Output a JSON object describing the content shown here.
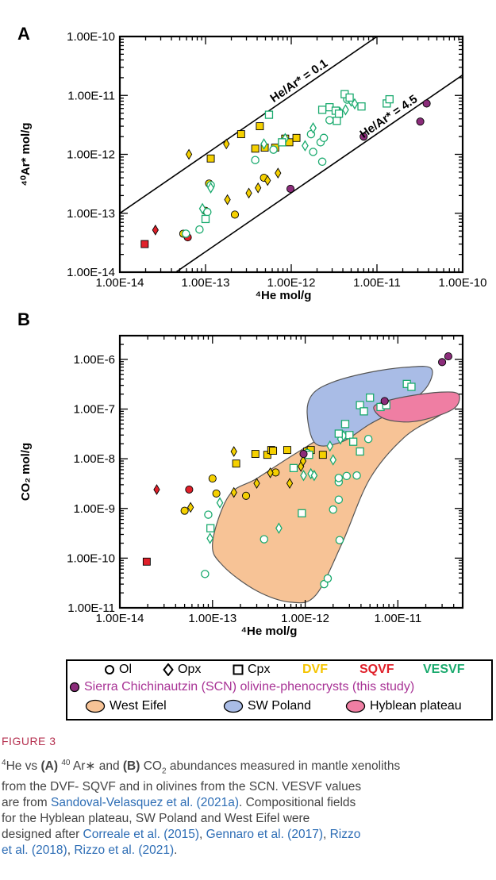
{
  "chart_data": [
    {
      "panel": "A",
      "type": "scatter",
      "xscale": "log",
      "yscale": "log",
      "xlim": [
        1e-14,
        1e-10
      ],
      "ylim": [
        1e-14,
        1e-10
      ],
      "xlabel": "⁴He mol/g",
      "ylabel": "⁴⁰Ar* mol/g",
      "xticks": [
        "1.00E-14",
        "1.00E-13",
        "1.00E-12",
        "1.00E-11",
        "1.00E-10"
      ],
      "yticks": [
        "1.00E-14",
        "1.00E-13",
        "1.00E-12",
        "1.00E-11",
        "1.00E-10"
      ],
      "ratio_lines": [
        {
          "label": "He/Ar* = 0.1",
          "ratio": 0.1
        },
        {
          "label": "He/Ar* = 4.5",
          "ratio": 4.5
        }
      ],
      "series": [
        {
          "name": "DVF Ol",
          "marker": "circle",
          "color": "#f5d000",
          "filled": true,
          "points": [
            [
              5.5e-14,
              4.5e-14
            ],
            [
              1.1e-13,
              3.2e-13
            ],
            [
              2.2e-13,
              9.5e-14
            ],
            [
              1e-13,
              1.1e-13
            ],
            [
              4.8e-13,
              4e-13
            ]
          ]
        },
        {
          "name": "DVF Opx",
          "marker": "diamond",
          "color": "#f5d000",
          "filled": true,
          "points": [
            [
              6.4e-14,
              1e-12
            ],
            [
              1.75e-13,
              1.5e-12
            ],
            [
              1.8e-13,
              1.7e-13
            ],
            [
              3.2e-13,
              2.2e-13
            ],
            [
              4.1e-13,
              2.7e-13
            ],
            [
              5.3e-13,
              3.6e-13
            ],
            [
              7e-13,
              4.8e-13
            ]
          ]
        },
        {
          "name": "DVF Cpx",
          "marker": "square",
          "color": "#f5d000",
          "filled": true,
          "points": [
            [
              1.15e-13,
              8.5e-13
            ],
            [
              2.6e-13,
              2.2e-12
            ],
            [
              3.8e-13,
              1.25e-12
            ],
            [
              4.3e-13,
              3e-12
            ],
            [
              4.9e-13,
              1.3e-12
            ],
            [
              6.5e-13,
              1.3e-12
            ],
            [
              8.5e-13,
              1.85e-12
            ],
            [
              9.5e-13,
              1.6e-12
            ],
            [
              1.15e-12,
              1.9e-12
            ]
          ]
        },
        {
          "name": "SQVF Opx",
          "marker": "diamond",
          "color": "#e0202a",
          "filled": true,
          "points": [
            [
              2.6e-14,
              5.2e-14
            ]
          ]
        },
        {
          "name": "SQVF Cpx",
          "marker": "square",
          "color": "#e0202a",
          "filled": true,
          "points": [
            [
              1.95e-14,
              3e-14
            ]
          ]
        },
        {
          "name": "SQVF Ol",
          "marker": "circle",
          "color": "#e0202a",
          "filled": true,
          "points": [
            [
              6.2e-14,
              3.9e-14
            ]
          ]
        },
        {
          "name": "VESVF Ol",
          "marker": "circle",
          "color": "#1aaa6e",
          "filled": false,
          "points": [
            [
              5.9e-14,
              4.5e-14
            ],
            [
              8.5e-14,
              5.3e-14
            ],
            [
              1.05e-13,
              1.05e-13
            ],
            [
              1.15e-13,
              3e-13
            ],
            [
              3.8e-13,
              8e-13
            ],
            [
              6.2e-13,
              1.2e-12
            ],
            [
              1.8e-12,
              1.1e-12
            ],
            [
              2.2e-12,
              1.6e-12
            ],
            [
              2.3e-12,
              7.5e-13
            ],
            [
              2.4e-12,
              1.9e-12
            ],
            [
              2.8e-12,
              3.8e-12
            ],
            [
              3.5e-12,
              5.5e-12
            ],
            [
              4.5e-12,
              8.5e-12
            ],
            [
              1.7e-12,
              2.2e-12
            ]
          ]
        },
        {
          "name": "VESVF Opx",
          "marker": "diamond",
          "color": "#1aaa6e",
          "filled": false,
          "points": [
            [
              9.2e-14,
              1.2e-13
            ],
            [
              1.15e-13,
              2.7e-13
            ],
            [
              4.8e-13,
              1.5e-12
            ],
            [
              8.5e-13,
              1.85e-12
            ],
            [
              1.45e-12,
              1.4e-12
            ],
            [
              1.8e-12,
              2.8e-12
            ],
            [
              4.3e-12,
              5.7e-12
            ],
            [
              5e-12,
              8e-12
            ],
            [
              3.7e-12,
              4.8e-12
            ],
            [
              5.5e-12,
              7.2e-12
            ]
          ]
        },
        {
          "name": "VESVF Cpx",
          "marker": "square",
          "color": "#1aaa6e",
          "filled": false,
          "points": [
            [
              1e-13,
              8e-14
            ],
            [
              5.5e-13,
              4.7e-12
            ],
            [
              7.8e-13,
              1.6e-12
            ],
            [
              2.3e-12,
              5.7e-12
            ],
            [
              2.8e-12,
              6.3e-12
            ],
            [
              3.3e-12,
              5.5e-12
            ],
            [
              3.6e-12,
              4.9e-12
            ],
            [
              4.2e-12,
              1.05e-11
            ],
            [
              4.8e-12,
              9.2e-12
            ],
            [
              6.6e-12,
              6.5e-12
            ],
            [
              1.3e-11,
              7.3e-12
            ],
            [
              1.4e-11,
              8.6e-12
            ],
            [
              3.4e-12,
              3.7e-12
            ]
          ]
        },
        {
          "name": "Sierra Chichinautzin (SCN)",
          "marker": "circle",
          "color": "#8b2c7a",
          "filled": true,
          "points": [
            [
              9.8e-13,
              2.6e-13
            ],
            [
              7e-12,
              2e-12
            ],
            [
              3.2e-11,
              3.6e-12
            ],
            [
              3.8e-11,
              7.3e-12
            ]
          ]
        }
      ]
    },
    {
      "panel": "B",
      "type": "scatter",
      "xscale": "log",
      "yscale": "log",
      "xlim": [
        1e-14,
        5e-11
      ],
      "ylim": [
        1e-11,
        3e-06
      ],
      "xlabel": "⁴He mol/g",
      "ylabel": "CO₂ mol/g",
      "xticks": [
        "1.00E-14",
        "1.00E-13",
        "1.00E-12",
        "1.00E-11"
      ],
      "yticks": [
        "1.00E-11",
        "1.00E-10",
        "1.00E-9",
        "1.00E-8",
        "1.00E-7",
        "1.00E-6"
      ],
      "fields": [
        {
          "name": "West Eifel",
          "color": "#f7c396",
          "polygon": [
            [
              1e-13,
              2e-10
            ],
            [
              1.5e-13,
              1.8e-09
            ],
            [
              3e-13,
              4e-09
            ],
            [
              8e-13,
              1.3e-08
            ],
            [
              2e-12,
              3.5e-08
            ],
            [
              6e-12,
              7e-08
            ],
            [
              1.5e-11,
              1.2e-07
            ],
            [
              3.5e-11,
              2e-07
            ],
            [
              4.5e-11,
              1.6e-07
            ],
            [
              3e-11,
              8e-08
            ],
            [
              1.2e-11,
              2.8e-08
            ],
            [
              5e-12,
              4e-09
            ],
            [
              2.5e-12,
              2e-10
            ],
            [
              1.3e-12,
              1.8e-11
            ],
            [
              7e-13,
              1.3e-11
            ],
            [
              3e-13,
              2.2e-11
            ],
            [
              1.3e-13,
              7e-11
            ]
          ]
        },
        {
          "name": "SW Poland",
          "color": "#a9bce6",
          "polygon": [
            [
              1.05e-12,
              8e-08
            ],
            [
              1.2e-12,
              2e-07
            ],
            [
              2e-12,
              3.5e-07
            ],
            [
              5e-12,
              5.5e-07
            ],
            [
              1.3e-11,
              7e-07
            ],
            [
              2.3e-11,
              6.5e-07
            ],
            [
              2e-11,
              2.6e-07
            ],
            [
              1.1e-11,
              1.1e-07
            ],
            [
              5e-12,
              5e-08
            ],
            [
              2.5e-12,
              2.2e-08
            ],
            [
              1.3e-12,
              2e-08
            ]
          ]
        },
        {
          "name": "Hyblean plateau",
          "color": "#ef7ea3",
          "polygon": [
            [
              5.5e-12,
              1.1e-07
            ],
            [
              8e-12,
              1.5e-07
            ],
            [
              1.5e-11,
              1.9e-07
            ],
            [
              3e-11,
              2.2e-07
            ],
            [
              4.5e-11,
              2e-07
            ],
            [
              4.2e-11,
              1.1e-07
            ],
            [
              2.5e-11,
              7e-08
            ],
            [
              1.3e-11,
              5.5e-08
            ],
            [
              7e-12,
              6.5e-08
            ]
          ]
        }
      ],
      "series": [
        {
          "name": "DVF Ol",
          "marker": "circle",
          "color": "#f5d000",
          "filled": true,
          "points": [
            [
              5e-14,
              9e-10
            ],
            [
              1e-13,
              4e-09
            ],
            [
              1.1e-13,
              2e-09
            ],
            [
              2.3e-13,
              1.8e-09
            ],
            [
              4.8e-13,
              5.3e-09
            ]
          ]
        },
        {
          "name": "DVF Opx",
          "marker": "diamond",
          "color": "#f5d000",
          "filled": true,
          "points": [
            [
              5.8e-14,
              1.05e-09
            ],
            [
              1.7e-13,
              2.1e-09
            ],
            [
              1.7e-13,
              1.4e-08
            ],
            [
              3e-13,
              3.2e-09
            ],
            [
              4.2e-13,
              5.2e-09
            ],
            [
              6.8e-13,
              3.2e-09
            ],
            [
              9e-13,
              7e-09
            ],
            [
              9.5e-13,
              9e-09
            ]
          ]
        },
        {
          "name": "DVF Cpx",
          "marker": "square",
          "color": "#f5d000",
          "filled": true,
          "points": [
            [
              1.8e-13,
              8e-09
            ],
            [
              2.9e-13,
              1.25e-08
            ],
            [
              3.9e-13,
              1.2e-08
            ],
            [
              4.3e-13,
              1.5e-08
            ],
            [
              4.5e-13,
              1.45e-08
            ],
            [
              6.4e-13,
              1.5e-08
            ],
            [
              1.05e-12,
              1.4e-08
            ],
            [
              1.15e-12,
              1.5e-08
            ],
            [
              1.55e-12,
              1.2e-08
            ]
          ]
        },
        {
          "name": "SQVF Opx",
          "marker": "diamond",
          "color": "#e0202a",
          "filled": true,
          "points": [
            [
              2.5e-14,
              2.4e-09
            ]
          ]
        },
        {
          "name": "SQVF Cpx",
          "marker": "square",
          "color": "#e0202a",
          "filled": true,
          "points": [
            [
              1.95e-14,
              8.5e-11
            ]
          ]
        },
        {
          "name": "SQVF Ol",
          "marker": "circle",
          "color": "#e0202a",
          "filled": true,
          "points": [
            [
              5.6e-14,
              2.4e-09
            ]
          ]
        },
        {
          "name": "VESVF Ol",
          "marker": "circle",
          "color": "#1aaa6e",
          "filled": false,
          "points": [
            [
              8.3e-14,
              4.8e-11
            ],
            [
              9e-14,
              7.5e-10
            ],
            [
              3.6e-13,
              2.4e-10
            ],
            [
              1.6e-12,
              3e-11
            ],
            [
              1.75e-12,
              3.9e-11
            ],
            [
              2e-12,
              9.5e-10
            ],
            [
              2.3e-12,
              1.5e-09
            ],
            [
              2.35e-12,
              2.3e-10
            ],
            [
              2.3e-12,
              3.4e-09
            ],
            [
              2.3e-12,
              4.1e-09
            ],
            [
              2.8e-12,
              4.5e-09
            ],
            [
              3.6e-12,
              4.6e-09
            ],
            [
              4.8e-12,
              2.5e-08
            ],
            [
              1.05e-12,
              1.3e-08
            ]
          ]
        },
        {
          "name": "VESVF Opx",
          "marker": "diamond",
          "color": "#1aaa6e",
          "filled": false,
          "points": [
            [
              9.4e-14,
              2.5e-10
            ],
            [
              1.2e-13,
              1.3e-09
            ],
            [
              5.2e-13,
              4e-10
            ],
            [
              9.6e-13,
              4.6e-09
            ],
            [
              1.15e-12,
              5e-09
            ],
            [
              1.85e-12,
              1.8e-08
            ],
            [
              2e-12,
              9.5e-09
            ],
            [
              2.4e-12,
              2.5e-08
            ],
            [
              2.6e-12,
              2.9e-08
            ],
            [
              1.25e-12,
              4.6e-09
            ]
          ]
        },
        {
          "name": "VESVF Cpx",
          "marker": "square",
          "color": "#1aaa6e",
          "filled": false,
          "points": [
            [
              9.5e-14,
              4e-10
            ],
            [
              7.5e-13,
              6.5e-09
            ],
            [
              9.2e-13,
              8e-10
            ],
            [
              1.1e-12,
              1.2e-08
            ],
            [
              2.3e-12,
              3.2e-08
            ],
            [
              2.7e-12,
              5e-08
            ],
            [
              3e-12,
              3e-08
            ],
            [
              3.3e-12,
              2.2e-08
            ],
            [
              3.9e-12,
              1.2e-07
            ],
            [
              4.3e-12,
              9e-08
            ],
            [
              5e-12,
              1.7e-07
            ],
            [
              6.5e-12,
              1.1e-07
            ],
            [
              1.25e-11,
              3.2e-07
            ],
            [
              1.4e-11,
              2.8e-07
            ],
            [
              3.9e-12,
              1.4e-08
            ],
            [
              7.5e-12,
              1.2e-07
            ]
          ]
        },
        {
          "name": "Sierra Chichinautzin (SCN)",
          "marker": "circle",
          "color": "#8b2c7a",
          "filled": true,
          "points": [
            [
              9.6e-13,
              1.25e-08
            ],
            [
              7.2e-12,
              1.45e-07
            ],
            [
              3e-11,
              8.8e-07
            ],
            [
              3.5e-11,
              1.15e-06
            ]
          ]
        }
      ]
    }
  ],
  "panels": {
    "a_label": "A",
    "b_label": "B"
  },
  "legend": {
    "ol": "Ol",
    "opx": "Opx",
    "cpx": "Cpx",
    "dvf": "DVF",
    "sqvf": "SQVF",
    "vesvf": "VESVF",
    "scn": "Sierra Chichinautzin (SCN) olivine-phenocrysts (this study)",
    "west_eifel": "West Eifel",
    "sw_poland": "SW Poland",
    "hyblean": "Hyblean plateau",
    "colors": {
      "dvf": "#f5d000",
      "sqvf": "#e0202a",
      "vesvf": "#1aaa6e",
      "scn": "#8b2c7a",
      "scn_text": "#a83295"
    }
  },
  "caption": {
    "heading": "FIGURE 3",
    "line1_a": "He vs ",
    "line1_A": "(A)",
    "line1_b": " Ar∗ and ",
    "line1_B": "(B)",
    "line1_c": " CO",
    "line1_d": " abundances measured in mantle xenoliths",
    "sup4": "4",
    "sup40": "40",
    "sub2": "2",
    "line2": "from the DVF- SQVF and in olivines from the SCN. VESVF values",
    "line3_a": "are from ",
    "link1": "Sandoval-Velasquez et al. (2021a)",
    "line3_b": ". Compositional fields",
    "line4": "for the Hyblean plateau, SW Poland and West Eifel were",
    "line5_a": "designed after ",
    "link2": "Correale et al. (2015)",
    "sep1": ", ",
    "link3": "Gennaro et al. (2017)",
    "sep2": ", ",
    "link4": "Rizzo",
    "link5": "et al. (2018)",
    "sep3": ", ",
    "link6": "Rizzo et al. (2021)",
    "end": "."
  }
}
